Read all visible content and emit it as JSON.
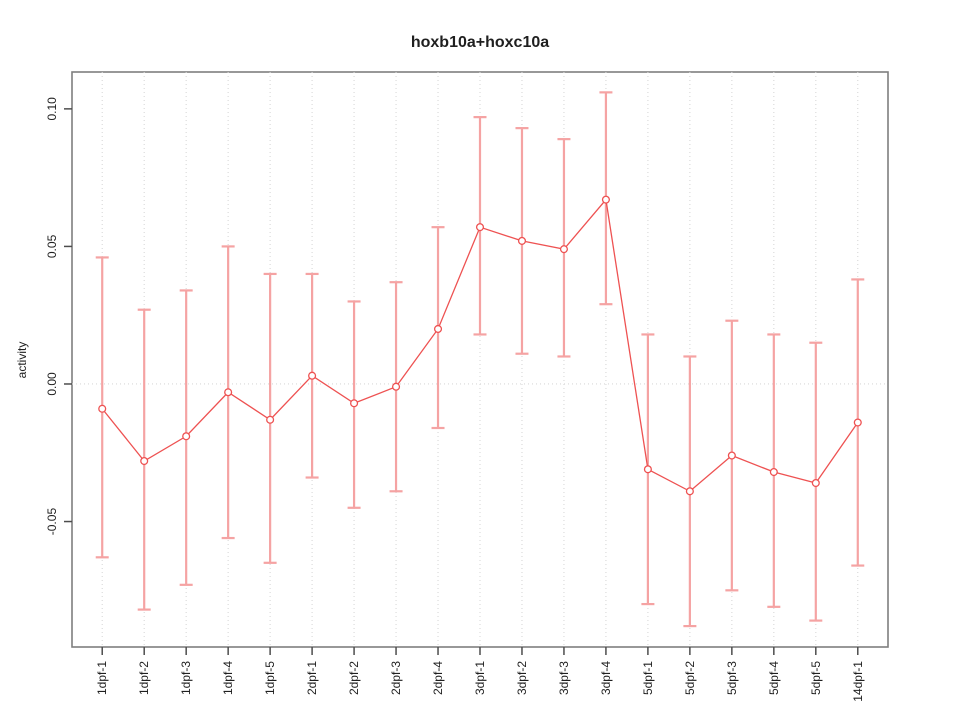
{
  "chart_data": {
    "type": "line",
    "title": "hoxb10a+hoxc10a",
    "xlabel": "",
    "ylabel": "activity",
    "categories": [
      "1dpf-1",
      "1dpf-2",
      "1dpf-3",
      "1dpf-4",
      "1dpf-5",
      "2dpf-1",
      "2dpf-2",
      "2dpf-3",
      "2dpf-4",
      "3dpf-1",
      "3dpf-2",
      "3dpf-3",
      "3dpf-4",
      "5dpf-1",
      "5dpf-2",
      "5dpf-3",
      "5dpf-4",
      "5dpf-5",
      "14dpf-1"
    ],
    "series": [
      {
        "name": "activity",
        "values": [
          -0.009,
          -0.028,
          -0.019,
          -0.003,
          -0.013,
          0.003,
          -0.007,
          -0.001,
          0.02,
          0.057,
          0.052,
          0.049,
          0.067,
          -0.031,
          -0.039,
          -0.026,
          -0.032,
          -0.036,
          -0.014
        ],
        "error_upper": [
          0.046,
          0.027,
          0.034,
          0.05,
          0.04,
          0.04,
          0.03,
          0.037,
          0.057,
          0.097,
          0.093,
          0.089,
          0.106,
          0.018,
          0.01,
          0.023,
          0.018,
          0.015,
          0.038
        ],
        "error_lower": [
          -0.063,
          -0.082,
          -0.073,
          -0.056,
          -0.065,
          -0.034,
          -0.045,
          -0.039,
          -0.016,
          0.018,
          0.011,
          0.01,
          0.029,
          -0.08,
          -0.088,
          -0.075,
          -0.081,
          -0.086,
          -0.066
        ]
      }
    ],
    "ylim": [
      -0.0956,
      0.1134
    ],
    "yticks": [
      0.1,
      0.05,
      0.0,
      -0.05
    ],
    "ytick_labels": [
      "0.10",
      "0.05",
      "0.00",
      "-0.05"
    ],
    "reference_line_y": 0,
    "grid": "vertical dotted line at every category; horizontal dotted line at y=0 only",
    "legend": "none",
    "marker": "open-circle",
    "colors": {
      "series": "#ee5252",
      "error_bar": "#f5a3a3",
      "grid": "#d8d8d8",
      "frame": "#7f7f7f",
      "tick": "#4d4d4d",
      "text": "#1f1f1f",
      "background": "#ffffff"
    }
  }
}
